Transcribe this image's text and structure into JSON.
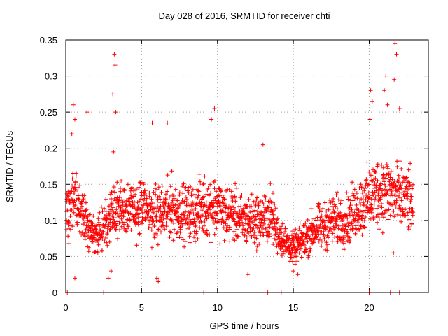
{
  "chart_data": {
    "type": "scatter",
    "title": "Day 028 of 2016, SRMTID for receiver chti",
    "xlabel": "GPS time / hours",
    "ylabel": "SRMTID / TECUs",
    "xlim": [
      0,
      23.9
    ],
    "ylim": [
      0,
      0.35
    ],
    "xticks": [
      0,
      5,
      10,
      15,
      20
    ],
    "xtick_labels": [
      "0",
      "5",
      "10",
      "15",
      "20"
    ],
    "yticks": [
      0,
      0.05,
      0.1,
      0.15,
      0.2,
      0.25,
      0.3,
      0.35
    ],
    "ytick_labels": [
      "0",
      "0.05",
      "0.1",
      "0.15",
      "0.2",
      "0.25",
      "0.3",
      "0.35"
    ],
    "grid": true,
    "marker": "+",
    "color": "#ff0000",
    "series": [
      {
        "name": "SRMTID",
        "profile": [
          [
            0.0,
            0.1
          ],
          [
            0.5,
            0.13
          ],
          [
            1.0,
            0.11
          ],
          [
            1.5,
            0.09
          ],
          [
            2.0,
            0.08
          ],
          [
            2.5,
            0.09
          ],
          [
            3.0,
            0.1
          ],
          [
            3.5,
            0.12
          ],
          [
            4.0,
            0.12
          ],
          [
            4.5,
            0.11
          ],
          [
            5.0,
            0.12
          ],
          [
            5.5,
            0.11
          ],
          [
            6.0,
            0.11
          ],
          [
            6.5,
            0.11
          ],
          [
            7.0,
            0.12
          ],
          [
            7.5,
            0.11
          ],
          [
            8.0,
            0.11
          ],
          [
            8.5,
            0.11
          ],
          [
            9.0,
            0.12
          ],
          [
            9.5,
            0.12
          ],
          [
            10.0,
            0.12
          ],
          [
            10.5,
            0.11
          ],
          [
            11.0,
            0.11
          ],
          [
            11.5,
            0.1
          ],
          [
            12.0,
            0.1
          ],
          [
            12.5,
            0.1
          ],
          [
            13.0,
            0.1
          ],
          [
            13.5,
            0.11
          ],
          [
            14.0,
            0.08
          ],
          [
            14.5,
            0.07
          ],
          [
            15.0,
            0.06
          ],
          [
            15.5,
            0.07
          ],
          [
            16.0,
            0.08
          ],
          [
            16.5,
            0.09
          ],
          [
            17.0,
            0.09
          ],
          [
            17.5,
            0.1
          ],
          [
            18.0,
            0.1
          ],
          [
            18.5,
            0.1
          ],
          [
            19.0,
            0.11
          ],
          [
            19.5,
            0.12
          ],
          [
            20.0,
            0.13
          ],
          [
            20.5,
            0.14
          ],
          [
            21.0,
            0.14
          ],
          [
            21.5,
            0.14
          ],
          [
            22.0,
            0.13
          ],
          [
            22.5,
            0.13
          ],
          [
            22.9,
            0.12
          ]
        ],
        "spikes": [
          [
            0.5,
            0.26
          ],
          [
            0.6,
            0.24
          ],
          [
            0.4,
            0.22
          ],
          [
            1.4,
            0.25
          ],
          [
            3.2,
            0.33
          ],
          [
            3.25,
            0.315
          ],
          [
            3.1,
            0.275
          ],
          [
            3.3,
            0.25
          ],
          [
            3.15,
            0.195
          ],
          [
            5.7,
            0.235
          ],
          [
            6.7,
            0.235
          ],
          [
            9.8,
            0.255
          ],
          [
            9.6,
            0.24
          ],
          [
            13.0,
            0.205
          ],
          [
            20.1,
            0.28
          ],
          [
            20.2,
            0.265
          ],
          [
            20.05,
            0.24
          ],
          [
            21.1,
            0.3
          ],
          [
            21.0,
            0.28
          ],
          [
            21.7,
            0.345
          ],
          [
            21.8,
            0.33
          ],
          [
            21.65,
            0.295
          ],
          [
            22.0,
            0.255
          ],
          [
            21.2,
            0.26
          ],
          [
            0.15,
            0.14
          ],
          [
            0.6,
            0.02
          ],
          [
            2.8,
            0.02
          ],
          [
            3.0,
            0.03
          ],
          [
            6.0,
            0.02
          ],
          [
            6.1,
            0.015
          ],
          [
            12.0,
            0.025
          ],
          [
            15.0,
            0.03
          ],
          [
            15.3,
            0.025
          ],
          [
            21.6,
            0.055
          ]
        ],
        "zero_points": [
          0.1,
          2.5,
          9.1,
          13.3,
          13.4,
          14.2,
          20.0,
          21.4,
          22.0
        ]
      }
    ]
  }
}
